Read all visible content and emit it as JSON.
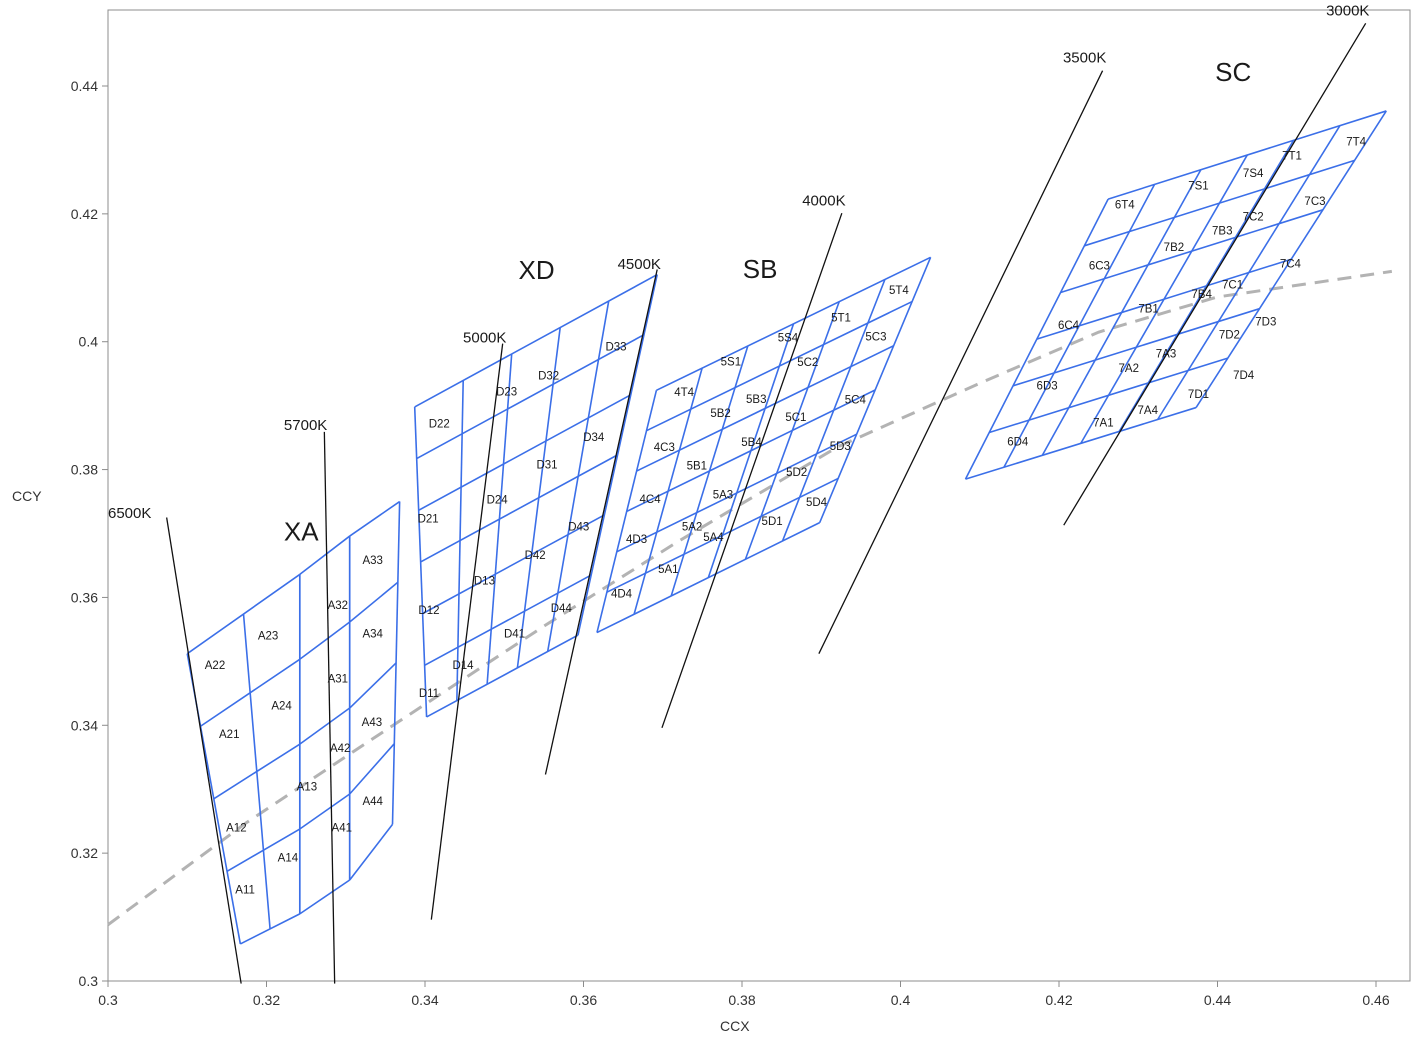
{
  "chart_data": {
    "type": "scatter",
    "xlabel": "CCX",
    "ylabel": "CCY",
    "xlim": [
      0.3,
      0.462
    ],
    "ylim": [
      0.3,
      0.452
    ],
    "x_ticks": [
      "0.3",
      "0.32",
      "0.34",
      "0.36",
      "0.38",
      "0.4",
      "0.42",
      "0.44",
      "0.46"
    ],
    "x_tick_values": [
      0.3,
      0.32,
      0.34,
      0.36,
      0.38,
      0.4,
      0.42,
      0.44,
      0.46
    ],
    "y_ticks": [
      "0.3",
      "0.32",
      "0.34",
      "0.36",
      "0.38",
      "0.4",
      "0.42",
      "0.44"
    ],
    "y_tick_values": [
      0.3,
      0.32,
      0.34,
      0.36,
      0.38,
      0.4,
      0.42,
      0.44
    ],
    "grid": false,
    "colors": {
      "bins": "#3b6fe8",
      "cct_lines": "#111111",
      "planckian": "#b3b3b3",
      "frame": "#8c8c8c",
      "text": "#1a1a1a"
    },
    "planckian_locus": [
      [
        0.3,
        0.3088
      ],
      [
        0.3175,
        0.3248
      ],
      [
        0.335,
        0.3392
      ],
      [
        0.355,
        0.3555
      ],
      [
        0.372,
        0.3688
      ],
      [
        0.392,
        0.3835
      ],
      [
        0.41,
        0.3935
      ],
      [
        0.425,
        0.4015
      ],
      [
        0.44,
        0.407
      ],
      [
        0.462,
        0.411
      ]
    ],
    "cct_lines": [
      {
        "label": "6500K",
        "points": [
          [
            0.3074,
            0.3725
          ],
          [
            0.3168,
            0.2996
          ]
        ],
        "label_at": [
          0.3,
          0.3724
        ]
      },
      {
        "label": "5700K",
        "points": [
          [
            0.3273,
            0.3859
          ],
          [
            0.3286,
            0.2996
          ]
        ],
        "label_at": [
          0.3222,
          0.3862
        ]
      },
      {
        "label": "5000K",
        "points": [
          [
            0.3498,
            0.3997
          ],
          [
            0.3408,
            0.3096
          ]
        ],
        "label_at": [
          0.3448,
          0.3999
        ]
      },
      {
        "label": "4500K",
        "points": [
          [
            0.3693,
            0.4113
          ],
          [
            0.3552,
            0.3323
          ]
        ],
        "label_at": [
          0.3643,
          0.4114
        ]
      },
      {
        "label": "4000K",
        "points": [
          [
            0.3926,
            0.4201
          ],
          [
            0.3699,
            0.3396
          ]
        ],
        "label_at": [
          0.3876,
          0.4213
        ]
      },
      {
        "label": "3500K",
        "points": [
          [
            0.4255,
            0.4424
          ],
          [
            0.3897,
            0.3512
          ]
        ],
        "label_at": [
          0.4205,
          0.4437
        ]
      },
      {
        "label": "3000K",
        "points": [
          [
            0.4587,
            0.4498
          ],
          [
            0.4206,
            0.3713
          ]
        ],
        "label_at": [
          0.4537,
          0.451
        ]
      }
    ],
    "regions": [
      {
        "name": "XA",
        "label_at": [
          0.3222,
          0.3689
        ],
        "corners": {
          "ll": [
            0.3129,
            0.3201
          ],
          "lr": [
            0.3305,
            0.3201
          ],
          "ul": [
            0.3099,
            0.3511
          ],
          "ur": [
            0.3368,
            0.375
          ],
          "ml": [
            0.3114,
            0.3356
          ],
          "mr": [
            0.3336,
            0.3476
          ]
        },
        "quads": [
          {
            "verts": [
              [
                0.3129,
                0.3065
              ],
              [
                0.3209,
                0.3107
              ],
              [
                0.3162,
                0.3221
              ],
              [
                0.3143,
                0.3177
              ]
            ]
          },
          {
            "verts": [
              [
                0.311,
                0.3517
              ],
              [
                0.3177,
                0.3571
              ],
              [
                0.3305,
                0.3696
              ],
              [
                0.3368,
                0.375
              ]
            ]
          }
        ],
        "grid": {
          "bottom": [
            [
              0.3166,
              0.3059
            ],
            [
              0.3209,
              0.3105
            ],
            [
              0.326,
              0.3152
            ],
            [
              0.3309,
              0.3201
            ]
          ],
          "middle": [
            [
              0.314,
              0.328
            ],
            [
              0.3187,
              0.3328
            ],
            [
              0.3242,
              0.3375
            ],
            [
              0.3293,
              0.3424
            ],
            [
              0.3338,
              0.3476
            ]
          ],
          "top": [
            [
              0.31,
              0.3511
            ],
            [
              0.3172,
              0.3571
            ],
            [
              0.3242,
              0.3636
            ],
            [
              0.3305,
              0.3696
            ],
            [
              0.3368,
              0.375
            ]
          ],
          "left": [
            [
              0.3166,
              0.3059
            ],
            [
              0.3145,
              0.3174
            ],
            [
              0.314,
              0.328
            ],
            [
              0.3118,
              0.3397
            ],
            [
              0.31,
              0.3511
            ]
          ],
          "right": [
            [
              0.3368,
              0.3245
            ],
            [
              0.3359,
              0.3318
            ],
            [
              0.3342,
              0.3372
            ],
            [
              0.3376,
              0.3437
            ],
            [
              0.3368,
              0.375
            ]
          ]
        },
        "cells": [
          {
            "label": "A11",
            "at": [
              0.3173,
              0.3137
            ]
          },
          {
            "label": "A14",
            "at": [
              0.3227,
              0.3187
            ]
          },
          {
            "label": "A12",
            "at": [
              0.3162,
              0.3234
            ]
          },
          {
            "label": "A13",
            "at": [
              0.3251,
              0.3298
            ]
          },
          {
            "label": "A21",
            "at": [
              0.3153,
              0.338
            ]
          },
          {
            "label": "A24",
            "at": [
              0.3219,
              0.3425
            ]
          },
          {
            "label": "A22",
            "at": [
              0.3135,
              0.3488
            ]
          },
          {
            "label": "A23",
            "at": [
              0.3202,
              0.3534
            ]
          },
          {
            "label": "A41",
            "at": [
              0.3295,
              0.3234
            ]
          },
          {
            "label": "A44",
            "at": [
              0.3334,
              0.3275
            ]
          },
          {
            "label": "A42",
            "at": [
              0.3293,
              0.3358
            ]
          },
          {
            "label": "A43",
            "at": [
              0.3333,
              0.3399
            ]
          },
          {
            "label": "A31",
            "at": [
              0.329,
              0.3467
            ]
          },
          {
            "label": "A34",
            "at": [
              0.3334,
              0.3537
            ]
          },
          {
            "label": "A32",
            "at": [
              0.329,
              0.3582
            ]
          },
          {
            "label": "A33",
            "at": [
              0.3334,
              0.3652
            ]
          }
        ]
      },
      {
        "name": "XD",
        "label_at": [
          0.3518,
          0.4098
        ],
        "cells": [
          {
            "label": "D11",
            "at": [
              0.3405,
              0.3444
            ]
          },
          {
            "label": "D14",
            "at": [
              0.3448,
              0.3488
            ]
          },
          {
            "label": "D12",
            "at": [
              0.3405,
              0.3574
            ]
          },
          {
            "label": "D13",
            "at": [
              0.3475,
              0.362
            ]
          },
          {
            "label": "D21",
            "at": [
              0.3404,
              0.3717
            ]
          },
          {
            "label": "D24",
            "at": [
              0.3491,
              0.3747
            ]
          },
          {
            "label": "D22",
            "at": [
              0.3418,
              0.3866
            ]
          },
          {
            "label": "D23",
            "at": [
              0.3503,
              0.3916
            ]
          },
          {
            "label": "D41",
            "at": [
              0.3513,
              0.3537
            ]
          },
          {
            "label": "D44",
            "at": [
              0.3572,
              0.3577
            ]
          },
          {
            "label": "D42",
            "at": [
              0.3539,
              0.366
            ]
          },
          {
            "label": "D43",
            "at": [
              0.3594,
              0.3705
            ]
          },
          {
            "label": "D31",
            "at": [
              0.3554,
              0.3802
            ]
          },
          {
            "label": "D34",
            "at": [
              0.3613,
              0.3845
            ]
          },
          {
            "label": "D32",
            "at": [
              0.3556,
              0.3941
            ]
          },
          {
            "label": "D33",
            "at": [
              0.3641,
              0.3986
            ]
          }
        ]
      },
      {
        "name": "SB",
        "label_at": [
          0.3801,
          0.41
        ],
        "cells": [
          {
            "label": "4D4",
            "at": [
              0.3648,
              0.36
            ]
          },
          {
            "label": "5A1",
            "at": [
              0.3707,
              0.3638
            ]
          },
          {
            "label": "4D3",
            "at": [
              0.3667,
              0.3685
            ]
          },
          {
            "label": "5A4",
            "at": [
              0.3764,
              0.3688
            ]
          },
          {
            "label": "4C4",
            "at": [
              0.3684,
              0.3748
            ]
          },
          {
            "label": "5A2",
            "at": [
              0.3737,
              0.3705
            ]
          },
          {
            "label": "4C3",
            "at": [
              0.3702,
              0.3829
            ]
          },
          {
            "label": "5A3",
            "at": [
              0.3776,
              0.3755
            ]
          },
          {
            "label": "4T4",
            "at": [
              0.3727,
              0.3915
            ]
          },
          {
            "label": "5B1",
            "at": [
              0.3743,
              0.38
            ]
          },
          {
            "label": "5S1",
            "at": [
              0.3786,
              0.3963
            ]
          },
          {
            "label": "5B2",
            "at": [
              0.3773,
              0.3882
            ]
          },
          {
            "label": "5B4",
            "at": [
              0.3812,
              0.3837
            ]
          },
          {
            "label": "5B3",
            "at": [
              0.3818,
              0.3904
            ]
          },
          {
            "label": "5D1",
            "at": [
              0.3838,
              0.3713
            ]
          },
          {
            "label": "5D2",
            "at": [
              0.3869,
              0.379
            ]
          },
          {
            "label": "5D4",
            "at": [
              0.3894,
              0.3743
            ]
          },
          {
            "label": "5D3",
            "at": [
              0.3924,
              0.3831
            ]
          },
          {
            "label": "5C1",
            "at": [
              0.3868,
              0.3876
            ]
          },
          {
            "label": "5C4",
            "at": [
              0.3943,
              0.3903
            ]
          },
          {
            "label": "5C2",
            "at": [
              0.3883,
              0.3962
            ]
          },
          {
            "label": "5C3",
            "at": [
              0.3969,
              0.4002
            ]
          },
          {
            "label": "5S4",
            "at": [
              0.3858,
              0.4
            ]
          },
          {
            "label": "5T1",
            "at": [
              0.3925,
              0.4032
            ]
          },
          {
            "label": "5T4",
            "at": [
              0.3998,
              0.4075
            ]
          }
        ]
      },
      {
        "name": "SC",
        "label_at": [
          0.4397,
          0.4408
        ],
        "cells": [
          {
            "label": "6D4",
            "at": [
              0.4148,
              0.3838
            ]
          },
          {
            "label": "7A1",
            "at": [
              0.4256,
              0.3867
            ]
          },
          {
            "label": "6D3",
            "at": [
              0.4185,
              0.3925
            ]
          },
          {
            "label": "7A4",
            "at": [
              0.4312,
              0.3887
            ]
          },
          {
            "label": "6C4",
            "at": [
              0.4212,
              0.402
            ]
          },
          {
            "label": "7A2",
            "at": [
              0.4288,
              0.3953
            ]
          },
          {
            "label": "6C3",
            "at": [
              0.4251,
              0.4113
            ]
          },
          {
            "label": "7A3",
            "at": [
              0.4335,
              0.3975
            ]
          },
          {
            "label": "6T4",
            "at": [
              0.4283,
              0.4208
            ]
          },
          {
            "label": "7B1",
            "at": [
              0.4313,
              0.4046
            ]
          },
          {
            "label": "7S1",
            "at": [
              0.4376,
              0.4238
            ]
          },
          {
            "label": "7B2",
            "at": [
              0.4345,
              0.4142
            ]
          },
          {
            "label": "7B4",
            "at": [
              0.438,
              0.4068
            ]
          },
          {
            "label": "7B3",
            "at": [
              0.4406,
              0.4168
            ]
          },
          {
            "label": "7D1",
            "at": [
              0.4376,
              0.3912
            ]
          },
          {
            "label": "7D2",
            "at": [
              0.4415,
              0.4005
            ]
          },
          {
            "label": "7D4",
            "at": [
              0.4433,
              0.3942
            ]
          },
          {
            "label": "7D3",
            "at": [
              0.4461,
              0.4025
            ]
          },
          {
            "label": "7C1",
            "at": [
              0.4419,
              0.4083
            ]
          },
          {
            "label": "7C4",
            "at": [
              0.4492,
              0.4116
            ]
          },
          {
            "label": "7C2",
            "at": [
              0.4445,
              0.419
            ]
          },
          {
            "label": "7C3",
            "at": [
              0.4523,
              0.4214
            ]
          },
          {
            "label": "7S4",
            "at": [
              0.4445,
              0.4258
            ]
          },
          {
            "label": "7T1",
            "at": [
              0.4494,
              0.4285
            ]
          },
          {
            "label": "7T4",
            "at": [
              0.4575,
              0.4307
            ]
          }
        ]
      }
    ]
  }
}
